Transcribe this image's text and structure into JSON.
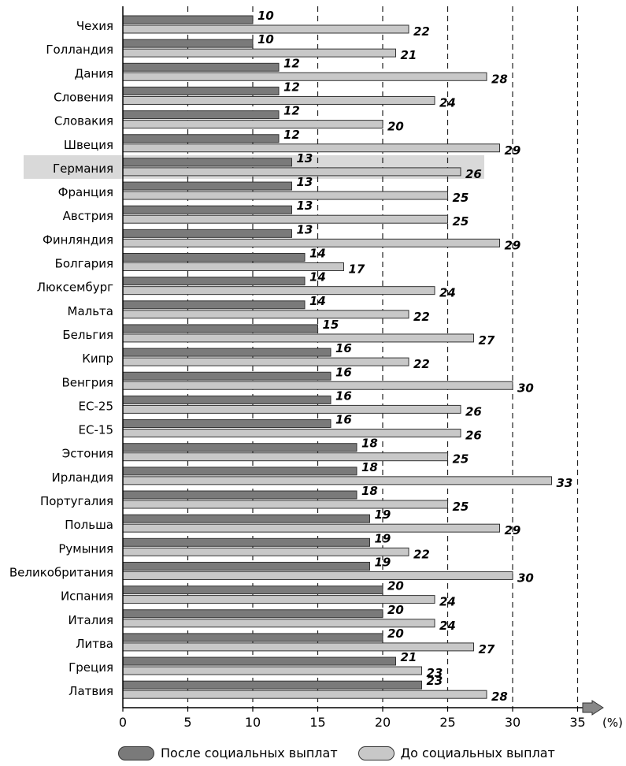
{
  "chart_data": {
    "type": "bar",
    "orientation": "horizontal",
    "unit_label": "(%)",
    "xlim": [
      0,
      35
    ],
    "x_ticks": [
      0,
      5,
      10,
      15,
      20,
      25,
      30,
      35
    ],
    "grid": "vertical dashed",
    "highlighted_category": "Германия",
    "categories": [
      "Чехия",
      "Голландия",
      "Дания",
      "Словения",
      "Словакия",
      "Швеция",
      "Германия",
      "Франция",
      "Австрия",
      "Финляндия",
      "Болгария",
      "Люксембург",
      "Мальта",
      "Бельгия",
      "Кипр",
      "Венгрия",
      "ЕС-25",
      "ЕС-15",
      "Эстония",
      "Ирландия",
      "Португалия",
      "Польша",
      "Румыния",
      "Великобритания",
      "Испания",
      "Италия",
      "Литва",
      "Греция",
      "Латвия"
    ],
    "series": [
      {
        "name": "После социальных выплат",
        "color": "#7a7a7a",
        "values": [
          10,
          10,
          12,
          12,
          12,
          12,
          13,
          13,
          13,
          13,
          14,
          14,
          14,
          15,
          16,
          16,
          16,
          16,
          18,
          18,
          18,
          19,
          19,
          19,
          20,
          20,
          20,
          21,
          23
        ]
      },
      {
        "name": "До социальных выплат",
        "color": "#c8c8c8",
        "values": [
          22,
          21,
          28,
          24,
          20,
          29,
          26,
          25,
          25,
          29,
          17,
          24,
          22,
          27,
          22,
          30,
          26,
          26,
          25,
          33,
          25,
          29,
          22,
          30,
          24,
          24,
          27,
          23,
          28
        ]
      }
    ],
    "legend_position": "bottom"
  }
}
